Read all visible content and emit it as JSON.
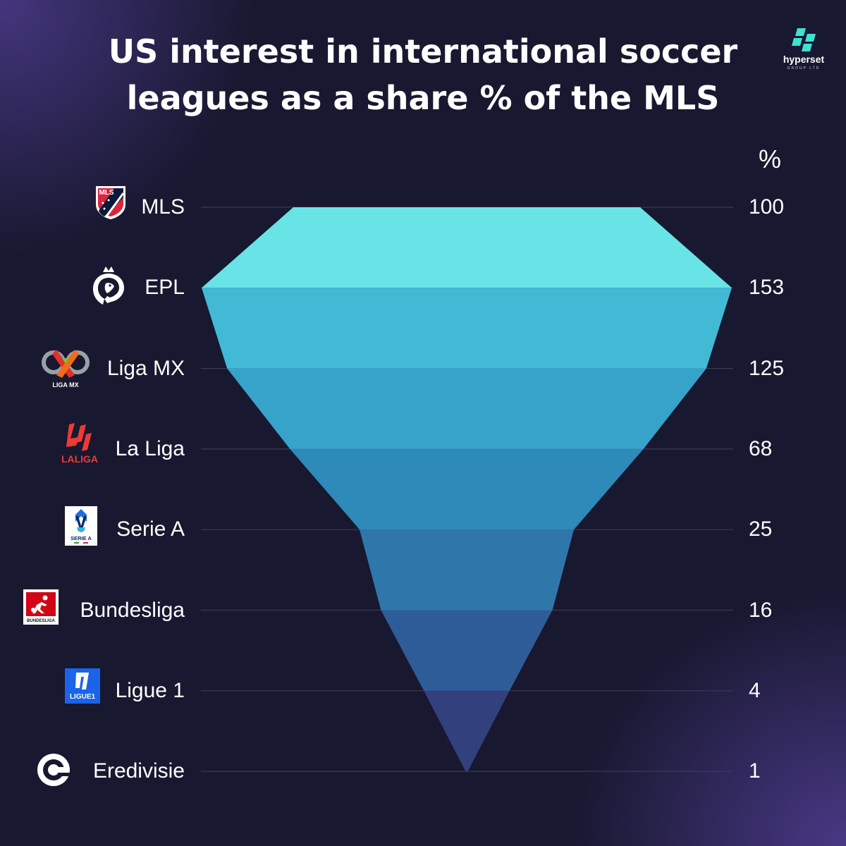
{
  "chart_data": {
    "type": "funnel",
    "title": "US interest in international soccer leagues as a share % of the MLS",
    "unit_label": "%",
    "categories": [
      "MLS",
      "EPL",
      "Liga MX",
      "La Liga",
      "Serie A",
      "Bundesliga",
      "Ligue 1",
      "Eredivisie"
    ],
    "values": [
      100,
      153,
      125,
      68,
      25,
      16,
      4,
      1
    ],
    "value_labels": [
      "100",
      "153",
      "125",
      "68",
      "25",
      "16",
      "4",
      "1"
    ],
    "colors": [
      "#69e4e6",
      "#42b9d5",
      "#37a3cb",
      "#2e8ab9",
      "#2f76ab",
      "#2e5c98",
      "#33407e",
      "#2d2d62"
    ],
    "grid": true
  },
  "logos": {
    "mls": "MLS",
    "ligamx": "LIGA MX",
    "laliga": "LALIGA",
    "seriea": "SERIE A",
    "bundesliga": "BUNDESLIGA",
    "ligue1": "LIGUE1"
  },
  "brand": {
    "name": "hyperset",
    "sub": "GROUP LTD",
    "color": "#3fe0d0"
  }
}
